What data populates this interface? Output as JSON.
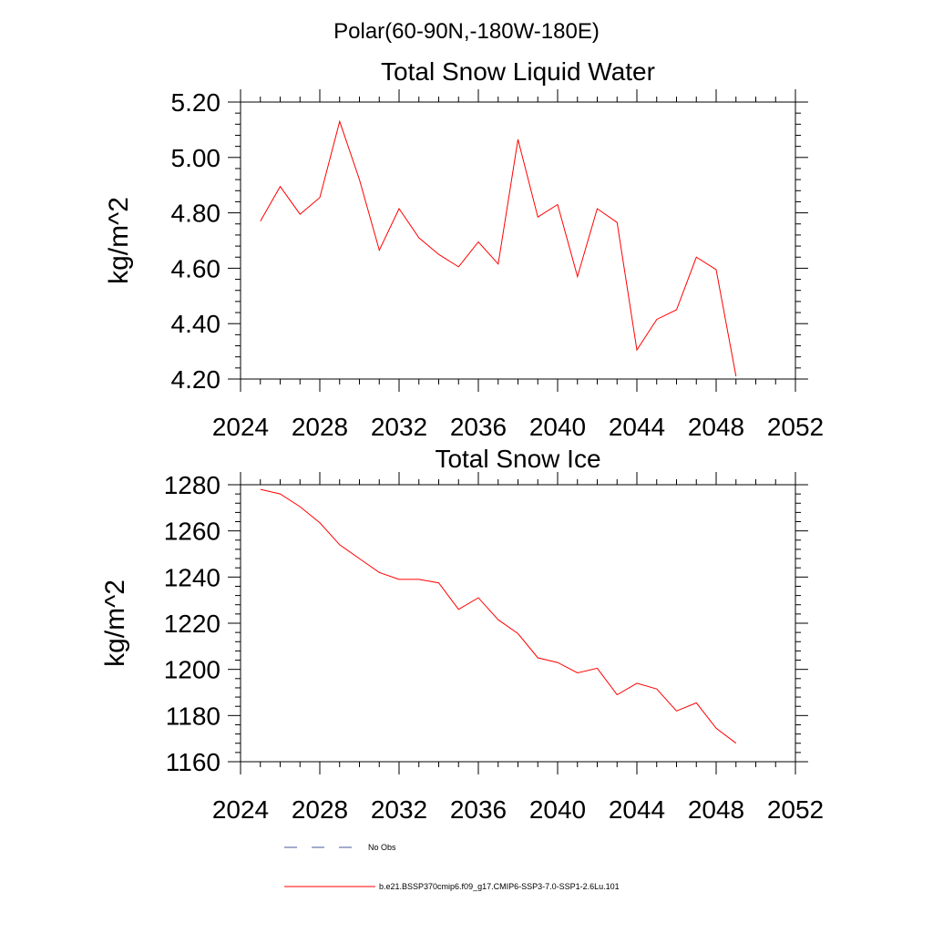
{
  "page_title": "Polar(60-90N,-180W-180E)",
  "legend": [
    {
      "label": "No Obs",
      "color": "#4a5a9a",
      "style": "dashed"
    },
    {
      "label": "b.e21.BSSP370cmip6.f09_g17.CMIP6-SSP3-7.0-SSP1-2.6Lu.101",
      "color": "#ff0000",
      "style": "solid"
    }
  ],
  "chart_data": [
    {
      "type": "line",
      "title": "Total Snow Liquid Water",
      "xlabel": "",
      "ylabel": "kg/m^2",
      "xlim": [
        2024,
        2052
      ],
      "ylim": [
        4.2,
        5.2
      ],
      "xticks": [
        2024,
        2028,
        2032,
        2036,
        2040,
        2044,
        2048,
        2052
      ],
      "xticklabels": [
        "2024",
        "2028",
        "2032",
        "2036",
        "2040",
        "2044",
        "2048",
        "2052"
      ],
      "yticks": [
        4.2,
        4.4,
        4.6,
        4.8,
        5.0,
        5.2
      ],
      "yticklabels": [
        "4.20",
        "4.40",
        "4.60",
        "4.80",
        "5.00",
        "5.20"
      ],
      "x": [
        2025,
        2026,
        2027,
        2028,
        2029,
        2030,
        2031,
        2032,
        2033,
        2034,
        2035,
        2036,
        2037,
        2038,
        2039,
        2040,
        2041,
        2042,
        2043,
        2044,
        2045,
        2046,
        2047,
        2048,
        2049
      ],
      "series": [
        {
          "color": "#ff0000",
          "values": [
            4.77,
            4.895,
            4.795,
            4.855,
            5.13,
            4.92,
            4.665,
            4.815,
            4.71,
            4.65,
            4.605,
            4.695,
            4.615,
            5.065,
            4.785,
            4.83,
            4.57,
            4.815,
            4.765,
            4.305,
            4.415,
            4.45,
            4.64,
            4.595,
            4.21
          ]
        }
      ]
    },
    {
      "type": "line",
      "title": "Total Snow Ice",
      "xlabel": "",
      "ylabel": "kg/m^2",
      "xlim": [
        2024,
        2052
      ],
      "ylim": [
        1160,
        1280
      ],
      "xticks": [
        2024,
        2028,
        2032,
        2036,
        2040,
        2044,
        2048,
        2052
      ],
      "xticklabels": [
        "2024",
        "2028",
        "2032",
        "2036",
        "2040",
        "2044",
        "2048",
        "2052"
      ],
      "yticks": [
        1160,
        1180,
        1200,
        1220,
        1240,
        1260,
        1280
      ],
      "yticklabels": [
        "1160",
        "1180",
        "1200",
        "1220",
        "1240",
        "1260",
        "1280"
      ],
      "x": [
        2025,
        2026,
        2027,
        2028,
        2029,
        2030,
        2031,
        2032,
        2033,
        2034,
        2035,
        2036,
        2037,
        2038,
        2039,
        2040,
        2041,
        2042,
        2043,
        2044,
        2045,
        2046,
        2047,
        2048,
        2049
      ],
      "series": [
        {
          "color": "#ff0000",
          "values": [
            1278,
            1276,
            1270.5,
            1263.5,
            1254,
            1248,
            1242,
            1239,
            1239,
            1237.5,
            1226,
            1231,
            1221.5,
            1215.5,
            1205,
            1203,
            1198.5,
            1200.5,
            1189,
            1194,
            1191.5,
            1182,
            1185.5,
            1174.5,
            1168
          ]
        }
      ]
    }
  ]
}
